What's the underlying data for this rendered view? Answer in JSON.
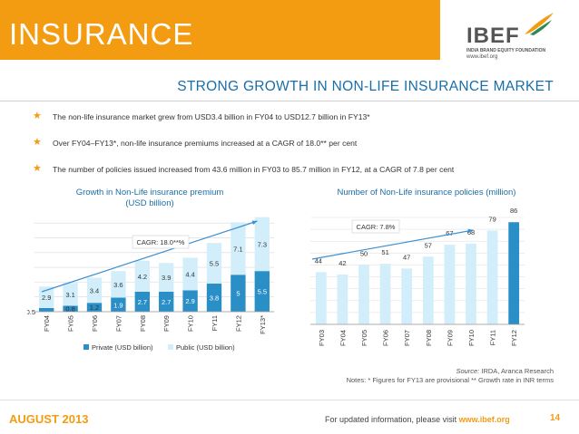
{
  "header": {
    "title": "INSURANCE",
    "logo_text": "IBEF",
    "logo_sub": "INDIA BRAND EQUITY FOUNDATION",
    "logo_url": "www.ibef.org"
  },
  "subtitle": "STRONG GROWTH IN NON-LIFE INSURANCE MARKET",
  "bullets": [
    "The non-life insurance market grew from USD3.4 billion in FY04 to USD12.7 billion in FY13*",
    "Over FY04–FY13*, non-life insurance premiums increased at a CAGR of 18.0** per cent",
    "The number of policies issued increased from 43.6 million in FY03 to 85.7 million in FY12, at a CAGR of 7.8 per cent"
  ],
  "chart_data": [
    {
      "type": "bar",
      "stacked": true,
      "title": "Growth in Non-Life insurance premium (USD billion)",
      "title_line1": "Growth in Non-Life insurance premium",
      "title_line2": "(USD billion)",
      "categories": [
        "FY04",
        "FY05",
        "FY06",
        "FY07",
        "FY08",
        "FY09",
        "FY10",
        "FY11",
        "FY12",
        "FY13*"
      ],
      "series": [
        {
          "name": "Private (USD billion)",
          "values": [
            0.5,
            0.8,
            1.2,
            1.9,
            2.7,
            2.7,
            2.9,
            3.8,
            5.0,
            5.5
          ]
        },
        {
          "name": "Public (USD billion)",
          "values": [
            2.9,
            3.1,
            3.4,
            3.6,
            4.2,
            3.9,
            4.4,
            5.5,
            7.1,
            7.3
          ]
        }
      ],
      "annotation": "CAGR: 18.0**%",
      "legend_position": "bottom",
      "colors": {
        "private": "#2b8fc7",
        "public": "#d3eefb"
      }
    },
    {
      "type": "bar",
      "title": "Number of Non-Life insurance policies (million)",
      "categories": [
        "FY03",
        "FY04",
        "FY05",
        "FY06",
        "FY07",
        "FY08",
        "FY09",
        "FY10",
        "FY11",
        "FY12"
      ],
      "values": [
        44,
        42,
        50,
        51,
        47,
        57,
        67,
        68,
        79,
        86
      ],
      "annotation": "CAGR: 7.8%",
      "colors": {
        "bar": "#d3eefb",
        "highlight": "#2b8fc7"
      }
    }
  ],
  "source": {
    "label": "Source:",
    "text": " IRDA, Aranca Research",
    "notes": "Notes: * Figures for FY13 are provisional ** Growth rate in INR terms"
  },
  "footer": {
    "date": "AUGUST 2013",
    "text": "For updated information, please visit ",
    "link": "www.ibef.org",
    "page": "14"
  }
}
